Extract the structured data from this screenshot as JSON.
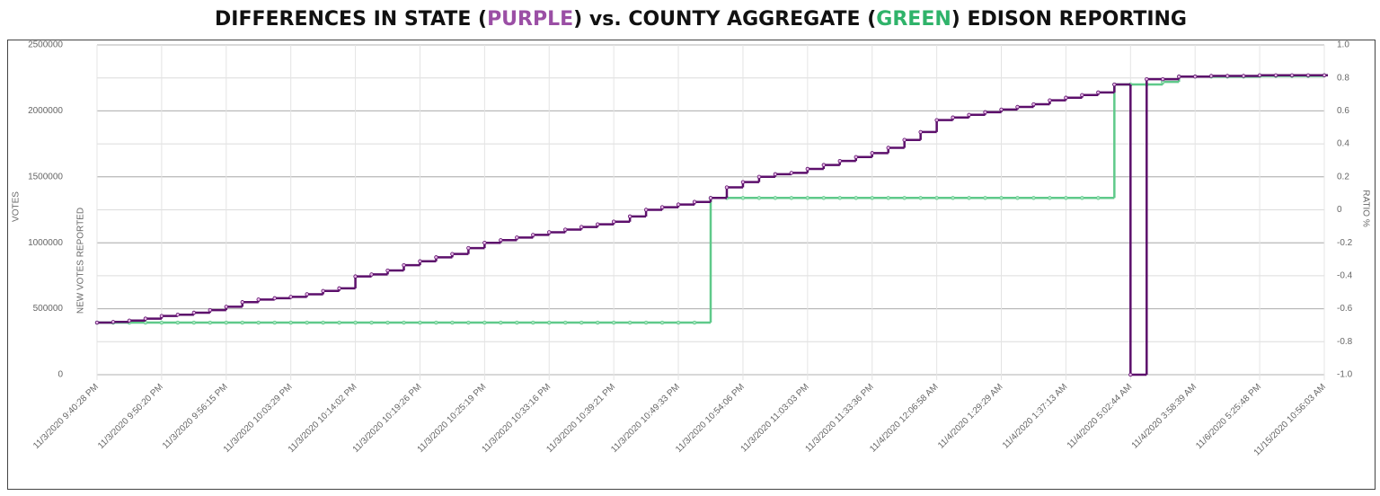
{
  "chart_data": {
    "type": "step-line",
    "title": [
      "DIFFERENCES IN STATE (",
      "PURPLE",
      ") vs. COUNTY AGGREGATE (",
      "GREEN",
      ") EDISON REPORTING"
    ],
    "title_colors": [
      "#111111",
      "#9b4fa5",
      "#111111",
      "#2fb36a",
      "#111111"
    ],
    "y_label": "VOTES",
    "y_label_inner": "NEW VOTES REPORTED",
    "y2_label": "RATIO %",
    "categories": [
      "11/3/2020 9:40:28 PM",
      null,
      null,
      null,
      "11/3/2020 9:50:20 PM",
      null,
      null,
      null,
      "11/3/2020 9:56:15 PM",
      null,
      null,
      null,
      "11/3/2020 10:03:29 PM",
      null,
      null,
      null,
      "11/3/2020 10:14:02 PM",
      null,
      null,
      null,
      "11/3/2020 10:19:26 PM",
      null,
      null,
      null,
      "11/3/2020 10:25:19 PM",
      null,
      null,
      null,
      "11/3/2020 10:33:16 PM",
      null,
      null,
      null,
      "11/3/2020 10:39:21 PM",
      null,
      null,
      null,
      "11/3/2020 10:49:33 PM",
      null,
      null,
      null,
      "11/3/2020 10:54:06 PM",
      null,
      null,
      null,
      "11/3/2020 11:03:03 PM",
      null,
      null,
      null,
      "11/3/2020 11:33:36 PM",
      null,
      null,
      null,
      "11/4/2020 12:06:58 AM",
      null,
      null,
      null,
      "11/4/2020 1:29:29 AM",
      null,
      null,
      null,
      "11/4/2020 1:37:13 AM",
      null,
      null,
      null,
      "11/4/2020 5:02:44 AM",
      null,
      null,
      null,
      "11/4/2020 3:58:39 AM",
      null,
      null,
      null,
      "11/6/2020 5:25:48 PM",
      null,
      null,
      null,
      "11/15/2020 10:56:03 AM"
    ],
    "series": [
      {
        "color": "#5c0f6b",
        "marker_color": "#e8b8e8",
        "values": [
          395000,
          400000,
          410000,
          425000,
          445000,
          455000,
          470000,
          490000,
          515000,
          550000,
          570000,
          580000,
          590000,
          610000,
          635000,
          655000,
          745000,
          760000,
          790000,
          830000,
          860000,
          890000,
          915000,
          960000,
          1000000,
          1020000,
          1040000,
          1060000,
          1080000,
          1100000,
          1120000,
          1140000,
          1160000,
          1200000,
          1250000,
          1270000,
          1290000,
          1310000,
          1340000,
          1420000,
          1460000,
          1500000,
          1520000,
          1530000,
          1560000,
          1590000,
          1620000,
          1650000,
          1680000,
          1720000,
          1780000,
          1840000,
          1930000,
          1950000,
          1970000,
          1990000,
          2010000,
          2030000,
          2050000,
          2080000,
          2100000,
          2120000,
          2140000,
          2200000,
          0,
          2240000,
          2240000,
          2260000,
          2260000,
          2265000,
          2265000,
          2265000,
          2270000,
          2270000,
          2270000,
          2270000,
          2270000
        ]
      },
      {
        "color": "#5fc98a",
        "marker_color": "#a8e6c0",
        "values": [
          395000,
          395000,
          395000,
          395000,
          395000,
          395000,
          395000,
          395000,
          395000,
          395000,
          395000,
          395000,
          395000,
          395000,
          395000,
          395000,
          395000,
          395000,
          395000,
          395000,
          395000,
          395000,
          395000,
          395000,
          395000,
          395000,
          395000,
          395000,
          395000,
          395000,
          395000,
          395000,
          395000,
          395000,
          395000,
          395000,
          395000,
          395000,
          1340000,
          1340000,
          1340000,
          1340000,
          1340000,
          1340000,
          1340000,
          1340000,
          1340000,
          1340000,
          1340000,
          1340000,
          1340000,
          1340000,
          1340000,
          1340000,
          1340000,
          1340000,
          1340000,
          1340000,
          1340000,
          1340000,
          1340000,
          1340000,
          1340000,
          2200000,
          2200000,
          2200000,
          2220000,
          2260000,
          2260000,
          2260000,
          2260000,
          2260000,
          2265000,
          2265000,
          2265000,
          2265000,
          2270000
        ]
      }
    ],
    "ylim": [
      0,
      2500000
    ],
    "yticks": [
      0,
      500000,
      1000000,
      1500000,
      2000000,
      2500000
    ],
    "y2lim": [
      -1,
      1
    ],
    "y2ticks": [
      {
        "value": -1,
        "label": "-1.0"
      },
      -0.8,
      -0.6,
      -0.4,
      -0.2,
      0,
      0.2,
      0.4,
      0.6,
      0.8,
      {
        "value": 1,
        "label": "1.0"
      }
    ],
    "grid": true
  }
}
